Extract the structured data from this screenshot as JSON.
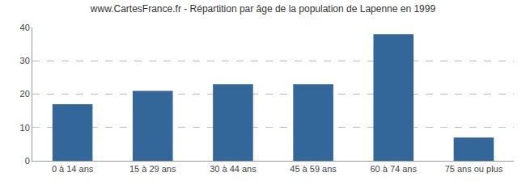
{
  "chart_data": {
    "type": "bar",
    "title": "www.CartesFrance.fr - Répartition par âge de la population de Lapenne en 1999",
    "categories": [
      "0 à 14 ans",
      "15 à 29 ans",
      "30 à 44 ans",
      "45 à 59 ans",
      "60 à 74 ans",
      "75 ans ou plus"
    ],
    "values": [
      17,
      21,
      23,
      23,
      38,
      7
    ],
    "color": "#336699",
    "ylim": [
      0,
      40
    ],
    "yticks": [
      0,
      10,
      20,
      30,
      40
    ],
    "grid": true
  }
}
